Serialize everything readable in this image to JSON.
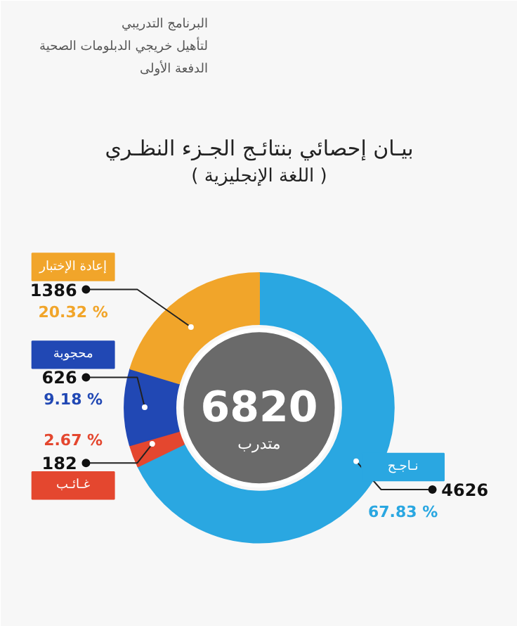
{
  "chart_data": {
    "type": "donut",
    "title": "بيـان إحصائي بنتائـج الجـزء النظـري",
    "subtitle": "( اللغة الإنجليزية )",
    "categories": [
      "نـاجـح",
      "غـائـب",
      "محجوبة",
      "إعادة الإختبار"
    ],
    "values": [
      4626,
      182,
      626,
      1386
    ],
    "colors": [
      "#2aa7e1",
      "#e4472f",
      "#2148b4",
      "#f1a52a"
    ],
    "data_labels": true,
    "annotations": [
      "البرنامج التدريبي",
      "لتأهيل خريجي الدبلومات الصحية",
      "الدفعة الأولى",
      {
        "text": "67.83 %",
        "x": "نـاجـح"
      },
      {
        "text": "2.67 %",
        "x": "غـائـب"
      },
      {
        "text": "9.18 %",
        "x": "محجوبة"
      },
      {
        "text": "20.32 %",
        "x": "إعادة الإختبار"
      },
      "6820",
      "متدرب"
    ]
  }
}
